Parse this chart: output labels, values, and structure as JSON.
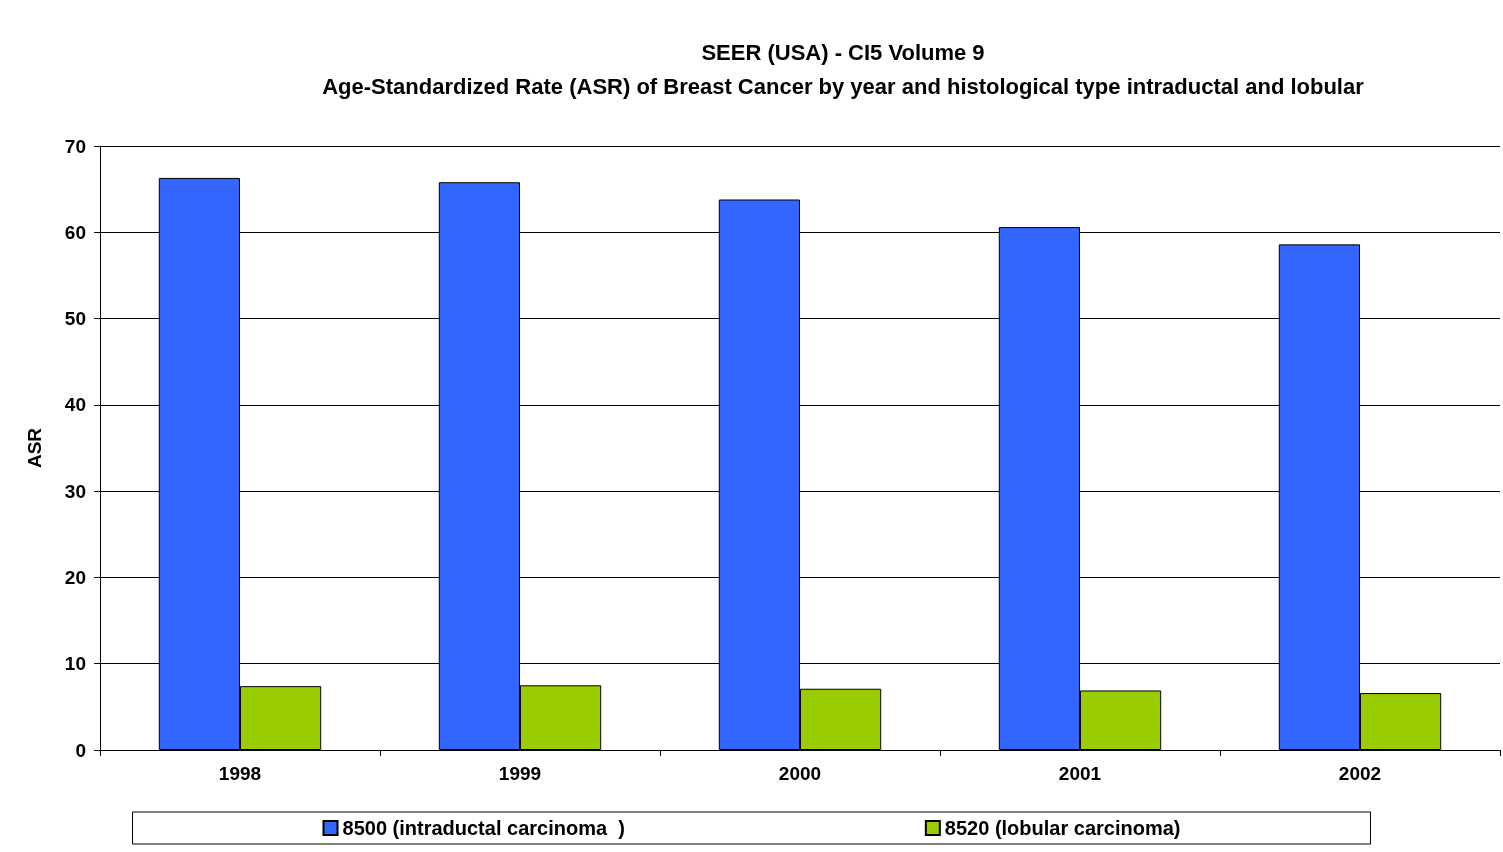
{
  "chart_data": {
    "type": "bar",
    "title": "SEER (USA) - CI5 Volume 9",
    "subtitle": "Age-Standardized Rate (ASR) of Breast Cancer by year and histological type intraductal and lobular",
    "ylabel": "ASR",
    "categories": [
      "1998",
      "1999",
      "2000",
      "2001",
      "2002"
    ],
    "series": [
      {
        "name": "8500 (intraductal carcinoma  )",
        "color": "#3366ff",
        "values": [
          66.3,
          65.8,
          63.8,
          60.6,
          58.6
        ]
      },
      {
        "name": "8520 (lobular carcinoma)",
        "color": "#99cc00",
        "values": [
          7.4,
          7.5,
          7.1,
          6.9,
          6.6
        ]
      }
    ],
    "ylim": [
      0,
      70
    ],
    "yticks": [
      0,
      10,
      20,
      30,
      40,
      50,
      60,
      70
    ],
    "grid": "y",
    "legend": "bottom"
  }
}
